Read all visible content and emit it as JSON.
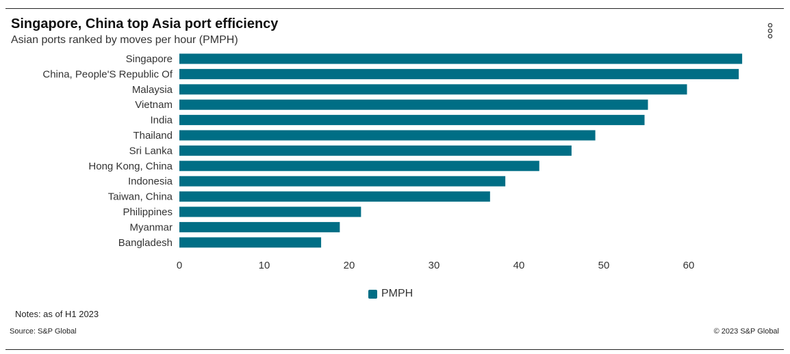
{
  "header": {
    "title": "Singapore, China top Asia port efficiency",
    "subtitle": "Asian ports ranked by moves per hour (PMPH)"
  },
  "menu": {
    "icon": "vertical-ellipsis-icon"
  },
  "chart_data": {
    "type": "bar",
    "orientation": "horizontal",
    "categories": [
      "Singapore",
      "China, People'S Republic Of",
      "Malaysia",
      "Vietnam",
      "India",
      "Thailand",
      "Sri Lanka",
      "Hong Kong, China",
      "Indonesia",
      "Taiwan, China",
      "Philippines",
      "Myanmar",
      "Bangladesh"
    ],
    "series": [
      {
        "name": "PMPH",
        "color": "#006e85",
        "values": [
          66.3,
          65.9,
          59.8,
          55.2,
          54.8,
          49.0,
          46.2,
          42.4,
          38.4,
          36.6,
          21.4,
          18.9,
          16.7
        ]
      }
    ],
    "xlim": [
      0,
      70
    ],
    "xticks": [
      0,
      10,
      20,
      30,
      40,
      50,
      60
    ],
    "grid": false,
    "legend_position": "bottom-center"
  },
  "legend": {
    "label": "PMPH",
    "color": "#006e85"
  },
  "footer": {
    "notes": "Notes: as of H1 2023",
    "source": "Source: S&P Global",
    "copyright": "© 2023 S&P Global"
  }
}
